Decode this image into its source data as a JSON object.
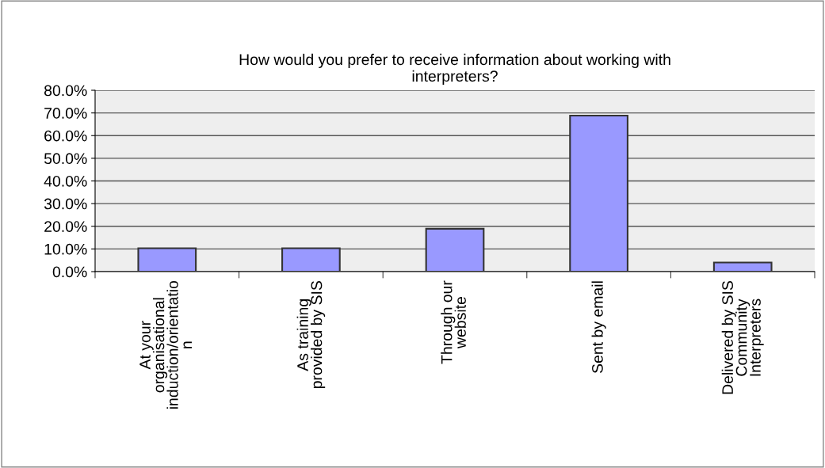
{
  "chart_data": {
    "type": "bar",
    "title": "How would you prefer to receive information about working with\ninterpreters?",
    "categories": [
      "At your\norganisational\ninduction/orientatio\nn",
      "As training\nprovided by SIS",
      "Through our\nwebsite",
      "Sent by email",
      "Delivered by SIS\nCommunity\nInterpreters"
    ],
    "values": [
      10.3,
      10.3,
      18.9,
      68.8,
      4.0
    ],
    "color": "#9999ff",
    "ylim": [
      0,
      80
    ],
    "yticks": [
      {
        "value": 0,
        "label": "0.0%"
      },
      {
        "value": 10,
        "label": "10.0%"
      },
      {
        "value": 20,
        "label": "20.0%"
      },
      {
        "value": 30,
        "label": "30.0%"
      },
      {
        "value": 40,
        "label": "40.0%"
      },
      {
        "value": 50,
        "label": "50.0%"
      },
      {
        "value": 60,
        "label": "60.0%"
      },
      {
        "value": 70,
        "label": "70.0%"
      },
      {
        "value": 80,
        "label": "80.0%"
      }
    ],
    "grid": "y"
  }
}
